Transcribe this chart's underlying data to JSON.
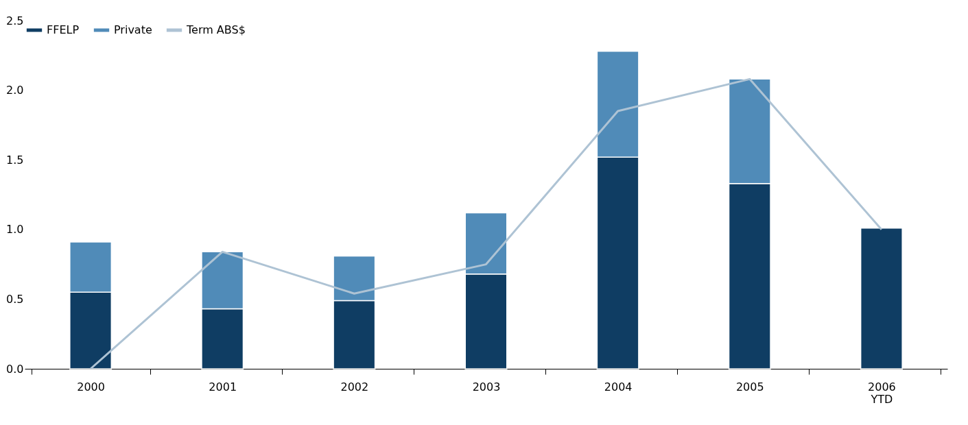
{
  "chart_data": {
    "type": "bar",
    "stacked": true,
    "categories": [
      "2000",
      "2001",
      "2002",
      "2003",
      "2004",
      "2005",
      "2006\nYTD"
    ],
    "series": [
      {
        "name": "FFELP",
        "color": "#0f3d63",
        "values": [
          0.55,
          0.43,
          0.49,
          0.68,
          1.52,
          1.33,
          1.01
        ]
      },
      {
        "name": "Private",
        "color": "#508bb8",
        "values": [
          0.36,
          0.41,
          0.32,
          0.44,
          0.76,
          0.75,
          null
        ]
      },
      {
        "name": "Term ABS$",
        "type": "line",
        "color": "#aec3d4",
        "values": [
          0.0,
          0.84,
          0.54,
          0.75,
          1.85,
          2.08,
          1.0
        ]
      }
    ],
    "ylim": [
      0,
      2.5
    ],
    "yticks": [
      {
        "value": 0,
        "label": "0.0"
      },
      0.5,
      {
        "value": 1,
        "label": "1.0"
      },
      1.5,
      {
        "value": 2,
        "label": "2.0"
      },
      2.5
    ],
    "grid": false,
    "legend": "top left"
  }
}
